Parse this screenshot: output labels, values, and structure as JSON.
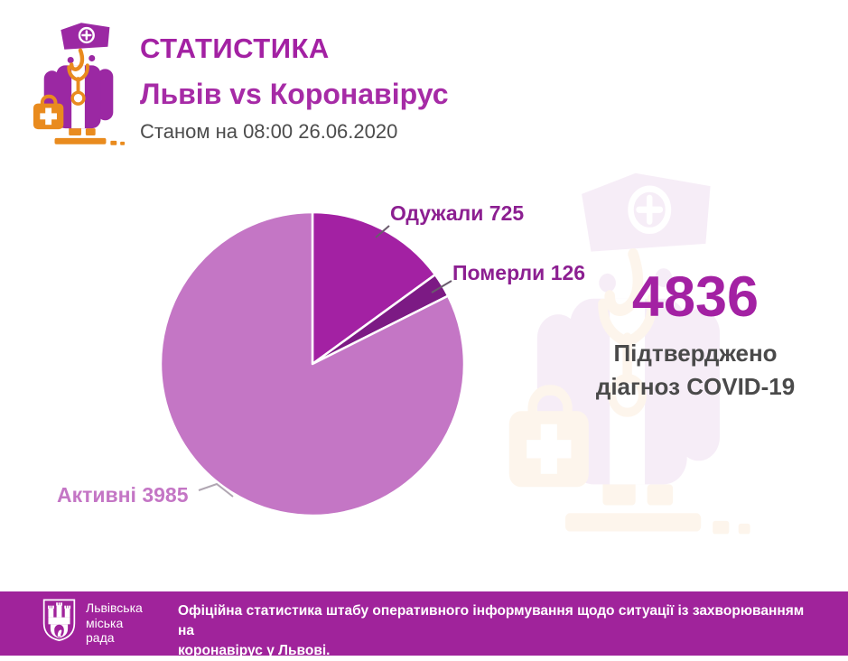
{
  "header": {
    "title": "СТАТИСТИКА",
    "subtitle": "Львів vs Коронавірус",
    "date_line": "Станом на 08:00 26.06.2020"
  },
  "chart_data": {
    "type": "pie",
    "start_angle_deg": 0,
    "direction": "clockwise",
    "slices": [
      {
        "name": "recovered",
        "label": "Одужали",
        "value": 725,
        "color": "#a321a3",
        "label_color": "#8c1f91"
      },
      {
        "name": "died",
        "label": "Померли",
        "value": 126,
        "color": "#7c1a84",
        "label_color": "#8c1f91"
      },
      {
        "name": "active",
        "label": "Активні",
        "value": 3985,
        "color": "#c476c5",
        "label_color": "#c476c5"
      }
    ],
    "total": 4836,
    "legend_position": "callout-labels"
  },
  "summary": {
    "total": "4836",
    "caption_line1": "Підтверджено",
    "caption_line2": "діагноз COVID-19"
  },
  "footer": {
    "org_line1": "Львівська",
    "org_line2": "міська",
    "org_line3": "рада",
    "message_line1": "Офіційна статистика штабу оперативного інформування щодо ситуації із захворюванням на",
    "message_line2": "коронавірус у Львові."
  },
  "icons": {
    "header_icon": "doctor-icon",
    "watermark_icon": "doctor-icon",
    "footer_icon": "lviv-city-crest-icon"
  },
  "colors": {
    "accent_magenta": "#a321a3",
    "icon_purple": "#9b28a3",
    "icon_orange": "#e98b1e",
    "text_gray": "#4c4c4c",
    "footer_background": "#a0239b",
    "slice_recovered": "#a321a3",
    "slice_died": "#7c1a84",
    "slice_active": "#c476c5"
  }
}
